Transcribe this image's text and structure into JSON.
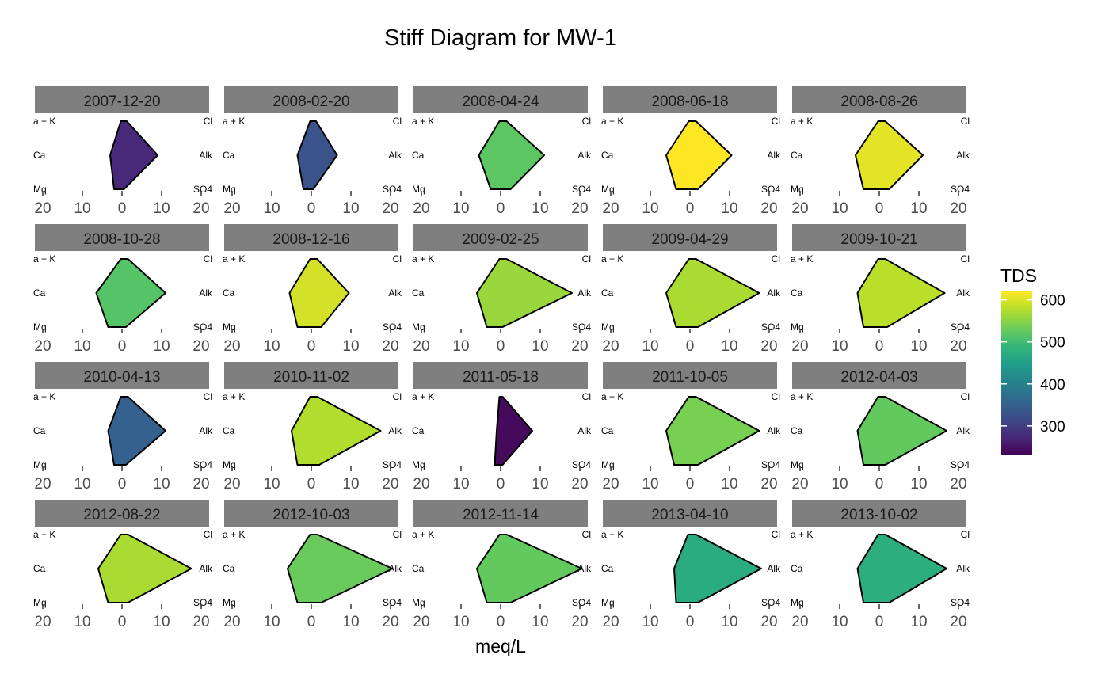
{
  "chart_data": {
    "type": "stiff_diagram",
    "title": "Stiff Diagram for MW-1",
    "xlabel": "meq/L",
    "x_ticks": [
      "20",
      "10",
      "0",
      "10",
      "20"
    ],
    "xlim": [
      -22,
      22
    ],
    "cation_labels": [
      "a + K",
      "Ca",
      "Mq"
    ],
    "anion_labels": [
      "Cl",
      "Alk",
      "SO4"
    ],
    "legend": {
      "title": "TDS",
      "ticks": [
        300,
        400,
        500,
        600
      ],
      "range": [
        230,
        620
      ],
      "palette": [
        "#440154",
        "#482878",
        "#3e4a89",
        "#31688e",
        "#26828e",
        "#1f9e89",
        "#35b779",
        "#6dcd59",
        "#b4de2c",
        "#fde725"
      ]
    },
    "panels": [
      {
        "date": "2007-12-20",
        "tds": 275,
        "na_k": 0.3,
        "ca": 3.0,
        "mg": 2.0,
        "cl": 1.2,
        "alk": 9.0,
        "so4": 0.5
      },
      {
        "date": "2008-02-20",
        "tds": 330,
        "na_k": 0.3,
        "ca": 3.5,
        "mg": 2.0,
        "cl": 1.2,
        "alk": 6.5,
        "so4": 0.5
      },
      {
        "date": "2008-04-24",
        "tds": 520,
        "na_k": 0.3,
        "ca": 5.5,
        "mg": 2.5,
        "cl": 1.5,
        "alk": 11.0,
        "so4": 2.5
      },
      {
        "date": "2008-06-18",
        "tds": 620,
        "na_k": 0.3,
        "ca": 6.0,
        "mg": 3.5,
        "cl": 1.5,
        "alk": 10.5,
        "so4": 2.0
      },
      {
        "date": "2008-08-26",
        "tds": 605,
        "na_k": 0.3,
        "ca": 6.0,
        "mg": 4.0,
        "cl": 1.5,
        "alk": 11.0,
        "so4": 2.5
      },
      {
        "date": "2008-10-28",
        "tds": 515,
        "na_k": 0.3,
        "ca": 6.5,
        "mg": 3.5,
        "cl": 1.5,
        "alk": 11.0,
        "so4": 1.0
      },
      {
        "date": "2008-12-16",
        "tds": 595,
        "na_k": 0.3,
        "ca": 5.5,
        "mg": 3.5,
        "cl": 1.5,
        "alk": 9.5,
        "so4": 2.5
      },
      {
        "date": "2009-02-25",
        "tds": 560,
        "na_k": 0.3,
        "ca": 6.0,
        "mg": 3.5,
        "cl": 1.5,
        "alk": 18.0,
        "so4": 0.5
      },
      {
        "date": "2009-04-29",
        "tds": 570,
        "na_k": 0.3,
        "ca": 6.0,
        "mg": 3.5,
        "cl": 1.5,
        "alk": 17.5,
        "so4": 2.0
      },
      {
        "date": "2009-10-21",
        "tds": 580,
        "na_k": 0.3,
        "ca": 5.5,
        "mg": 4.0,
        "cl": 1.5,
        "alk": 16.5,
        "so4": 2.0
      },
      {
        "date": "2010-04-13",
        "tds": 350,
        "na_k": 0.3,
        "ca": 3.5,
        "mg": 2.0,
        "cl": 1.5,
        "alk": 11.0,
        "so4": 1.0
      },
      {
        "date": "2010-11-02",
        "tds": 575,
        "na_k": 0.3,
        "ca": 5.0,
        "mg": 3.5,
        "cl": 1.5,
        "alk": 17.5,
        "so4": 2.0
      },
      {
        "date": "2011-05-18",
        "tds": 240,
        "na_k": 0.3,
        "ca": 1.0,
        "mg": 1.5,
        "cl": 0.5,
        "alk": 8.0,
        "so4": 0.5
      },
      {
        "date": "2011-10-05",
        "tds": 540,
        "na_k": 0.3,
        "ca": 6.0,
        "mg": 4.0,
        "cl": 1.5,
        "alk": 17.5,
        "so4": 2.0
      },
      {
        "date": "2012-04-03",
        "tds": 525,
        "na_k": 0.3,
        "ca": 5.5,
        "mg": 4.0,
        "cl": 1.5,
        "alk": 17.0,
        "so4": 1.5
      },
      {
        "date": "2012-08-22",
        "tds": 570,
        "na_k": 0.3,
        "ca": 6.0,
        "mg": 3.5,
        "cl": 1.5,
        "alk": 17.5,
        "so4": 1.5
      },
      {
        "date": "2012-10-03",
        "tds": 530,
        "na_k": 0.3,
        "ca": 6.0,
        "mg": 3.5,
        "cl": 1.5,
        "alk": 20.5,
        "so4": 2.5
      },
      {
        "date": "2012-11-14",
        "tds": 525,
        "na_k": 0.3,
        "ca": 6.0,
        "mg": 3.5,
        "cl": 1.5,
        "alk": 20.5,
        "so4": 2.5
      },
      {
        "date": "2013-04-10",
        "tds": 470,
        "na_k": 0.5,
        "ca": 4.0,
        "mg": 3.5,
        "cl": 1.5,
        "alk": 18.0,
        "so4": 2.0
      },
      {
        "date": "2013-10-02",
        "tds": 475,
        "na_k": 0.3,
        "ca": 5.5,
        "mg": 4.0,
        "cl": 1.5,
        "alk": 17.0,
        "so4": 2.5
      }
    ]
  }
}
